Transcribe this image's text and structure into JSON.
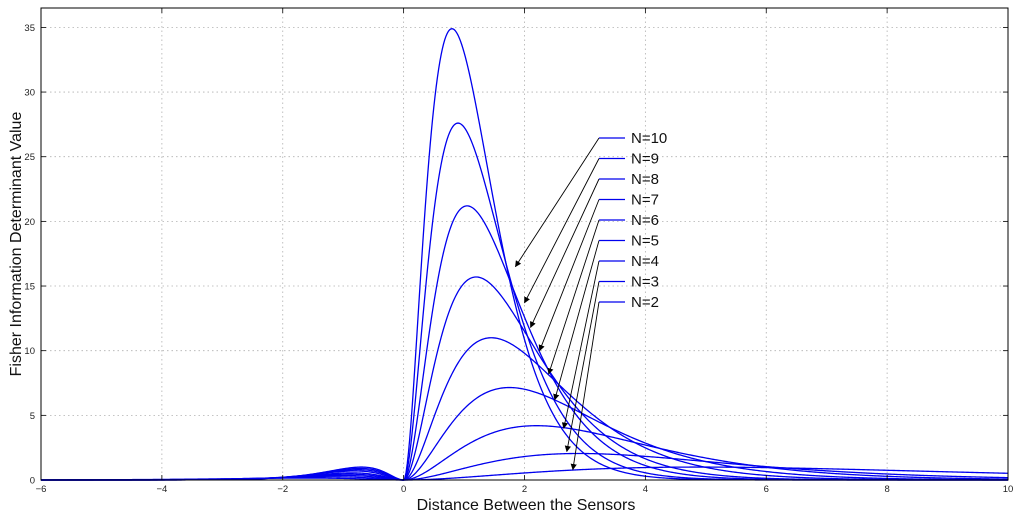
{
  "chart_data": {
    "type": "line",
    "xlabel": "Distance Between the Sensors",
    "ylabel": "Fisher Information Determinant Value",
    "xlim": [
      -6,
      10
    ],
    "ylim": [
      0,
      36.5
    ],
    "x_ticks": [
      -6,
      -4,
      -2,
      0,
      2,
      4,
      6,
      8,
      10
    ],
    "x_tick_labels": [
      "−6",
      "−4",
      "−2",
      "0",
      "2",
      "4",
      "6",
      "8",
      "10"
    ],
    "y_ticks": [
      0,
      5,
      10,
      15,
      20,
      25,
      30,
      35
    ],
    "y_tick_labels": [
      "0",
      "5",
      "10",
      "15",
      "20",
      "25",
      "30",
      "35"
    ],
    "grid": true,
    "line_color": "#0000ee",
    "annotation_color": "#000000",
    "series": [
      {
        "name": "N=10",
        "peak_x": 0.8,
        "peak_y": 34.9,
        "neg_peak_x": -0.7,
        "neg_peak_y": 1.0,
        "arrow_target": [
          1.85,
          16.5
        ]
      },
      {
        "name": "N=9",
        "peak_x": 0.9,
        "peak_y": 27.6,
        "neg_peak_x": -0.72,
        "neg_peak_y": 0.9,
        "arrow_target": [
          2.0,
          13.7
        ]
      },
      {
        "name": "N=8",
        "peak_x": 1.05,
        "peak_y": 21.2,
        "neg_peak_x": -0.75,
        "neg_peak_y": 0.8,
        "arrow_target": [
          2.1,
          11.8
        ]
      },
      {
        "name": "N=7",
        "peak_x": 1.2,
        "peak_y": 15.7,
        "neg_peak_x": -0.8,
        "neg_peak_y": 0.7,
        "arrow_target": [
          2.25,
          10.0
        ]
      },
      {
        "name": "N=6",
        "peak_x": 1.45,
        "peak_y": 11.0,
        "neg_peak_x": -0.85,
        "neg_peak_y": 0.55,
        "arrow_target": [
          2.4,
          8.2
        ]
      },
      {
        "name": "N=5",
        "peak_x": 1.75,
        "peak_y": 7.15,
        "neg_peak_x": -0.9,
        "neg_peak_y": 0.45,
        "arrow_target": [
          2.5,
          6.2
        ]
      },
      {
        "name": "N=4",
        "peak_x": 2.2,
        "peak_y": 4.2,
        "neg_peak_x": -1.0,
        "neg_peak_y": 0.35,
        "arrow_target": [
          2.65,
          4.0
        ]
      },
      {
        "name": "N=3",
        "peak_x": 2.9,
        "peak_y": 2.05,
        "neg_peak_x": -1.2,
        "neg_peak_y": 0.25,
        "arrow_target": [
          2.7,
          2.2
        ]
      },
      {
        "name": "N=2",
        "peak_x": 4.9,
        "peak_y": 1.0,
        "neg_peak_x": -1.6,
        "neg_peak_y": 0.15,
        "arrow_target": [
          2.8,
          0.8
        ]
      }
    ]
  }
}
